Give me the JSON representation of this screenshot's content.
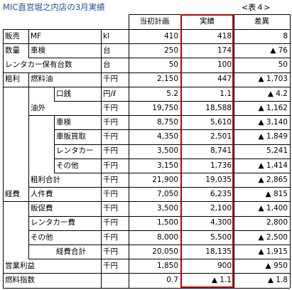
{
  "title": "MIC直営堀之内店の3月実績",
  "table_no": "<表４>",
  "headers": {
    "plan": "当初計画",
    "actual": "実績",
    "diff": "差異"
  },
  "rows": [
    {
      "labels": [
        {
          "t": "販売",
          "c": 0
        },
        {
          "t": "MF",
          "c": 1
        }
      ],
      "unit": "kl",
      "plan": "410",
      "actual": "418",
      "diff": "8"
    },
    {
      "labels": [
        {
          "t": "数量",
          "c": 0
        },
        {
          "t": "車検",
          "c": 1
        }
      ],
      "unit": "台",
      "plan": "250",
      "actual": "174",
      "diff": "▲ 76"
    },
    {
      "labels": [
        {
          "t": "レンタカー保有台数",
          "c": 0
        }
      ],
      "unit": "台",
      "plan": "50",
      "actual": "100",
      "diff": "50"
    },
    {
      "labels": [
        {
          "t": "粗利",
          "c": 0
        },
        {
          "t": "燃料油",
          "c": 1
        }
      ],
      "unit": "千円",
      "plan": "2,150",
      "actual": "447",
      "diff": "▲ 1,703"
    },
    {
      "labels": [
        {
          "t": "口銭",
          "c": 2
        }
      ],
      "unit": "円/ℓ",
      "plan": "5.2",
      "actual": "1.1",
      "diff": "▲ 4.2"
    },
    {
      "labels": [
        {
          "t": "油外",
          "c": 1
        }
      ],
      "unit": "千円",
      "plan": "19,750",
      "actual": "18,588",
      "diff": "▲ 1,162"
    },
    {
      "labels": [
        {
          "t": "車検",
          "c": 2
        }
      ],
      "unit": "千円",
      "plan": "8,750",
      "actual": "5,610",
      "diff": "▲ 3,140"
    },
    {
      "labels": [
        {
          "t": "車販買取",
          "c": 2
        }
      ],
      "unit": "千円",
      "plan": "4,350",
      "actual": "2,501",
      "diff": "▲ 1,849"
    },
    {
      "labels": [
        {
          "t": "レンタカー",
          "c": 2
        }
      ],
      "unit": "千円",
      "plan": "3,500",
      "actual": "8,741",
      "diff": "5,241"
    },
    {
      "labels": [
        {
          "t": "その他",
          "c": 2
        }
      ],
      "unit": "千円",
      "plan": "3,150",
      "actual": "1,736",
      "diff": "▲ 1,414"
    },
    {
      "labels": [
        {
          "t": "粗利合計",
          "c": 1
        }
      ],
      "unit": "千円",
      "plan": "21,900",
      "actual": "19,035",
      "diff": "▲ 2,865"
    },
    {
      "labels": [
        {
          "t": "経費",
          "c": 0
        },
        {
          "t": "人件費",
          "c": 1
        }
      ],
      "unit": "千円",
      "plan": "7,050",
      "actual": "6,235",
      "diff": "▲ 815"
    },
    {
      "labels": [
        {
          "t": "販促費",
          "c": 1
        }
      ],
      "unit": "千円",
      "plan": "3,500",
      "actual": "2,100",
      "diff": "▲ 1,400"
    },
    {
      "labels": [
        {
          "t": "レンタカー費",
          "c": 1
        }
      ],
      "unit": "千円",
      "plan": "1,500",
      "actual": "4,300",
      "diff": "2,800"
    },
    {
      "labels": [
        {
          "t": "その他",
          "c": 1
        }
      ],
      "unit": "千円",
      "plan": "8,000",
      "actual": "5,500",
      "diff": "▲ 2,500"
    },
    {
      "labels": [
        {
          "t": "経費合計",
          "c": 2
        }
      ],
      "unit": "千円",
      "plan": "20,050",
      "actual": "18,135",
      "diff": "▲ 1,915"
    },
    {
      "labels": [
        {
          "t": "営業利益",
          "c": 0
        }
      ],
      "unit": "千円",
      "plan": "1,850",
      "actual": "900",
      "diff": "▲ 950"
    },
    {
      "labels": [
        {
          "t": "燃料指数",
          "c": 0
        }
      ],
      "unit": "",
      "plan": "0.7",
      "actual": "▲ 1.1",
      "diff": "▲ 1.8"
    }
  ]
}
